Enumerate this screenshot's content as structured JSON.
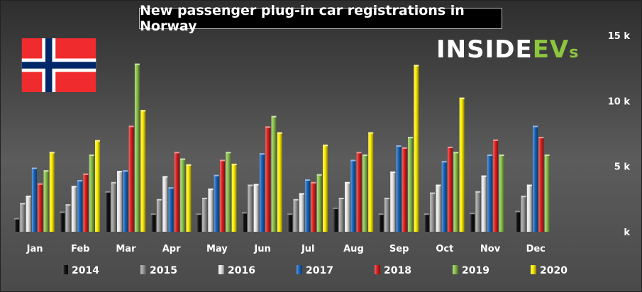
{
  "logo": {
    "inside": "INSIDE",
    "ev": "EV",
    "s": "s"
  },
  "chart_data": {
    "type": "bar",
    "title": "New passenger plug-in car registrations in Norway",
    "categories": [
      "Jan",
      "Feb",
      "Mar",
      "Apr",
      "May",
      "Jun",
      "Jul",
      "Aug",
      "Sep",
      "Oct",
      "Nov",
      "Dec"
    ],
    "ylim": [
      0,
      15000
    ],
    "yticks": [
      {
        "value": 0,
        "label": "k"
      },
      {
        "value": 5000,
        "label": "5 k"
      },
      {
        "value": 10000,
        "label": "10 k"
      },
      {
        "value": 15000,
        "label": "15 k"
      }
    ],
    "legend_position": "bottom",
    "grid": false,
    "series": [
      {
        "name": "2014",
        "color": "#111111",
        "values": [
          1050,
          1550,
          3100,
          1400,
          1400,
          1500,
          1400,
          1850,
          1400,
          1400,
          1450,
          1600
        ]
      },
      {
        "name": "2015",
        "color": "#9c9c9c",
        "values": [
          2200,
          2100,
          3800,
          2500,
          2600,
          3600,
          2500,
          2600,
          2600,
          3000,
          3100,
          2750
        ]
      },
      {
        "name": "2016",
        "color": "#e8e8e8",
        "values": [
          2750,
          3500,
          4650,
          4250,
          3300,
          3650,
          2950,
          3800,
          4600,
          3600,
          4300,
          3600
        ]
      },
      {
        "name": "2017",
        "color": "#1565c0",
        "values": [
          4900,
          3950,
          4700,
          3400,
          4350,
          6000,
          4000,
          5500,
          6600,
          5400,
          5900,
          8100
        ]
      },
      {
        "name": "2018",
        "color": "#e11d1d",
        "values": [
          3700,
          4450,
          8100,
          6100,
          5500,
          8050,
          3800,
          6100,
          6450,
          6500,
          7050,
          7250
        ]
      },
      {
        "name": "2019",
        "color": "#8bc34a",
        "values": [
          4700,
          5900,
          12850,
          5600,
          6100,
          8850,
          4400,
          5900,
          7250,
          6100,
          5900,
          5900
        ]
      },
      {
        "name": "2020",
        "color": "#ffee00",
        "values": [
          6100,
          7000,
          9300,
          5150,
          5200,
          7600,
          6650,
          7600,
          12750,
          10250,
          null,
          null
        ]
      }
    ]
  }
}
